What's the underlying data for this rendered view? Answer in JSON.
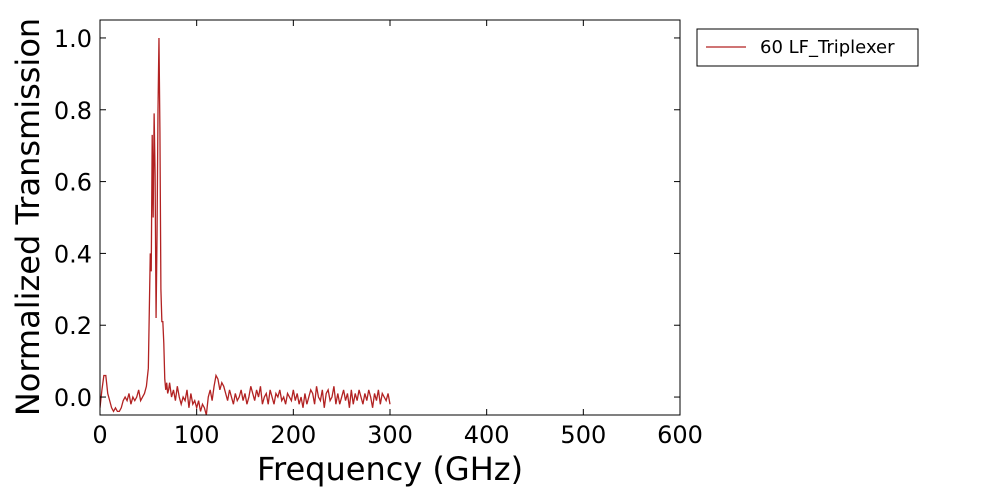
{
  "chart_data": {
    "type": "line",
    "xlabel": "Frequency (GHz)",
    "ylabel": "Normalized Transmission",
    "xlim": [
      0,
      600
    ],
    "ylim": [
      -0.05,
      1.05
    ],
    "xticks": [
      0,
      100,
      200,
      300,
      400,
      500,
      600
    ],
    "xtick_labels": [
      "0",
      "100",
      "200",
      "300",
      "400",
      "500",
      "600"
    ],
    "yticks": [
      0.0,
      0.2,
      0.4,
      0.6,
      0.8,
      1.0
    ],
    "ytick_labels": [
      "0.0",
      "0.2",
      "0.4",
      "0.6",
      "0.8",
      "1.0"
    ],
    "grid": false,
    "legend_position": "outside-top-right",
    "series": [
      {
        "name": "60 LF_Triplexer",
        "color": "#b22222",
        "x": [
          0,
          2,
          4,
          6,
          8,
          10,
          12,
          14,
          16,
          18,
          20,
          22,
          24,
          26,
          28,
          30,
          32,
          34,
          36,
          38,
          40,
          42,
          44,
          46,
          48,
          50,
          52,
          53,
          54,
          55,
          56,
          57,
          58,
          59,
          60,
          61,
          62,
          63,
          64,
          65,
          66,
          67,
          68,
          69,
          70,
          71,
          72,
          74,
          76,
          78,
          80,
          82,
          84,
          86,
          88,
          90,
          92,
          94,
          96,
          98,
          100,
          102,
          104,
          106,
          108,
          110,
          112,
          114,
          116,
          118,
          120,
          122,
          124,
          126,
          128,
          130,
          132,
          134,
          136,
          138,
          140,
          142,
          144,
          146,
          148,
          150,
          152,
          154,
          156,
          158,
          160,
          162,
          164,
          166,
          168,
          170,
          172,
          174,
          176,
          178,
          180,
          182,
          184,
          186,
          188,
          190,
          192,
          194,
          196,
          198,
          200,
          202,
          204,
          206,
          208,
          210,
          212,
          214,
          216,
          218,
          220,
          222,
          224,
          226,
          228,
          230,
          232,
          234,
          236,
          238,
          240,
          242,
          244,
          246,
          248,
          250,
          252,
          254,
          256,
          258,
          260,
          262,
          264,
          266,
          268,
          270,
          272,
          274,
          276,
          278,
          280,
          282,
          284,
          286,
          288,
          290,
          292,
          294,
          296,
          298,
          300
        ],
        "y": [
          -0.03,
          0.02,
          0.06,
          0.06,
          0.01,
          -0.01,
          -0.03,
          -0.04,
          -0.03,
          -0.04,
          -0.04,
          -0.03,
          -0.01,
          0.0,
          -0.01,
          0.01,
          -0.02,
          0.0,
          -0.01,
          0.0,
          0.02,
          -0.01,
          0.0,
          0.01,
          0.03,
          0.08,
          0.4,
          0.35,
          0.73,
          0.5,
          0.79,
          0.62,
          0.22,
          0.45,
          0.8,
          1.0,
          0.74,
          0.3,
          0.21,
          0.21,
          0.15,
          0.05,
          0.02,
          0.04,
          0.01,
          0.02,
          0.04,
          0.0,
          0.02,
          -0.01,
          0.03,
          0.0,
          -0.02,
          0.0,
          -0.01,
          0.02,
          -0.03,
          0.01,
          -0.02,
          -0.01,
          -0.03,
          -0.01,
          -0.04,
          -0.02,
          -0.03,
          -0.05,
          0.0,
          0.02,
          -0.01,
          0.03,
          0.06,
          0.05,
          0.02,
          0.04,
          0.03,
          0.01,
          -0.01,
          0.02,
          0.0,
          -0.02,
          0.01,
          -0.01,
          0.0,
          0.02,
          -0.01,
          0.01,
          -0.02,
          0.0,
          0.03,
          0.01,
          -0.01,
          0.02,
          0.0,
          0.03,
          -0.02,
          0.0,
          0.01,
          -0.02,
          0.02,
          0.0,
          -0.02,
          0.01,
          0.0,
          0.02,
          -0.01,
          0.0,
          -0.02,
          0.01,
          0.0,
          -0.01,
          0.02,
          -0.01,
          0.01,
          -0.02,
          0.0,
          -0.03,
          0.01,
          -0.02,
          0.0,
          0.02,
          0.01,
          -0.02,
          0.03,
          0.0,
          -0.01,
          0.02,
          -0.03,
          0.01,
          0.02,
          -0.01,
          0.0,
          0.03,
          -0.02,
          0.01,
          -0.02,
          0.0,
          0.02,
          -0.01,
          0.01,
          -0.03,
          0.02,
          -0.02,
          0.01,
          -0.01,
          0.02,
          0.0,
          -0.02,
          0.01,
          -0.01,
          0.02,
          0.0,
          -0.03,
          0.01,
          -0.01,
          0.02,
          -0.02,
          0.01,
          0.0,
          -0.01,
          0.01,
          -0.02
        ]
      }
    ]
  }
}
